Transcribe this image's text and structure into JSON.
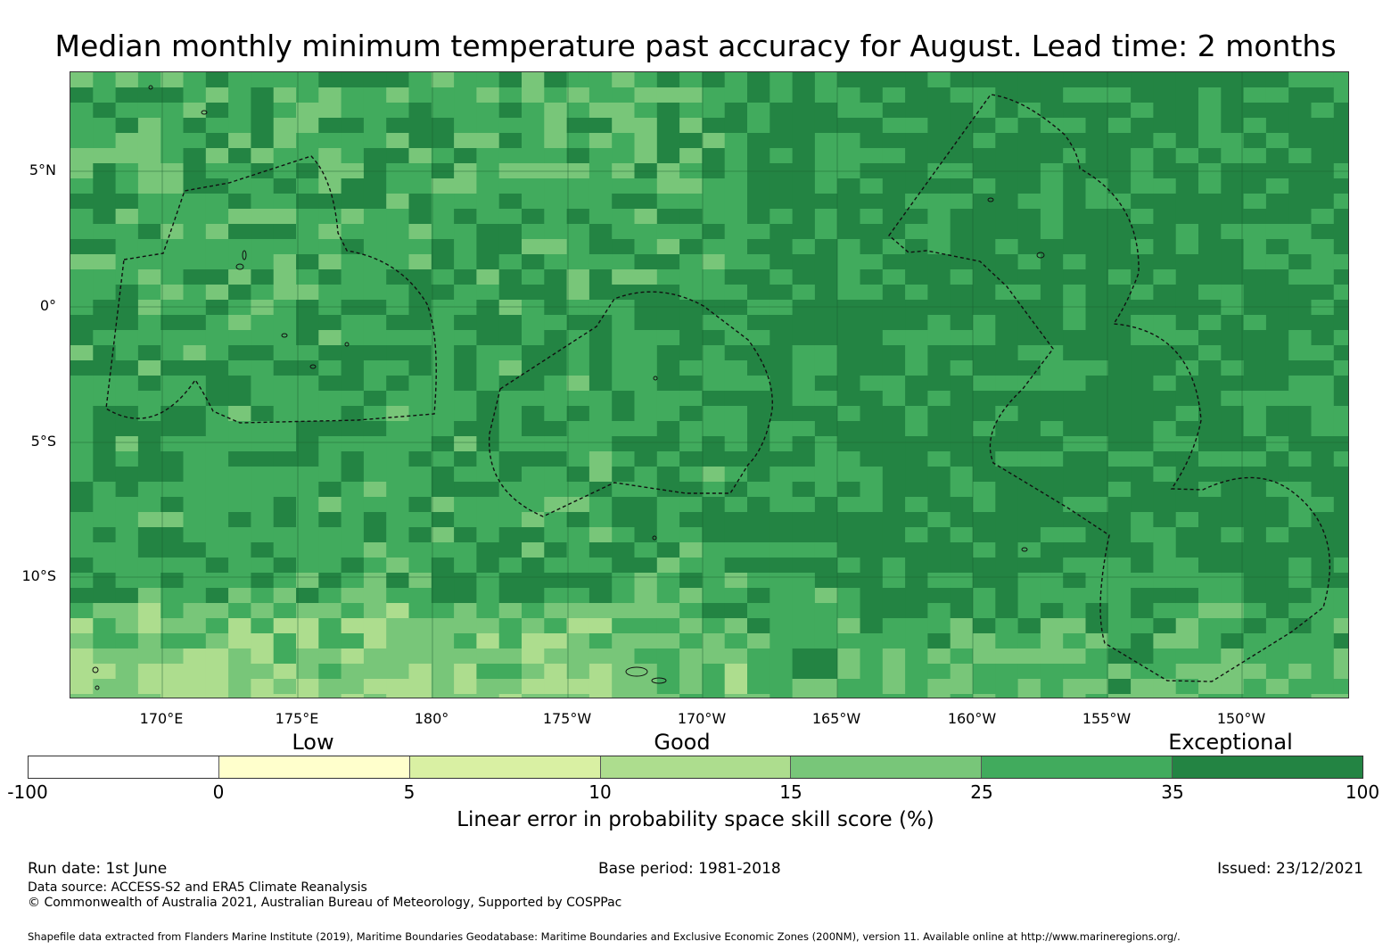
{
  "title": "Median monthly minimum temperature past accuracy for August. Lead time: 2 months",
  "map": {
    "lat_labels": [
      "5°N",
      "0°",
      "5°S",
      "10°S"
    ],
    "lon_labels": [
      "170°E",
      "175°E",
      "180°",
      "175°W",
      "170°W",
      "165°W",
      "160°W",
      "155°W",
      "150°W"
    ],
    "palette": [
      "#ffffcc",
      "#d9f0a3",
      "#addd8e",
      "#78c679",
      "#41ab5d",
      "#238443"
    ],
    "boundary_color": "#111111",
    "grid_color": "#1a5e30"
  },
  "legend": {
    "categories": [
      "Low",
      "Good",
      "Exceptional"
    ],
    "ticks": [
      "-100",
      "0",
      "5",
      "10",
      "15",
      "25",
      "35",
      "100"
    ],
    "colors": [
      "#ffffff",
      "#ffffcc",
      "#d9f0a3",
      "#addd8e",
      "#78c679",
      "#41ab5d",
      "#238443"
    ],
    "title": "Linear error in probability space skill score (%)"
  },
  "footer": {
    "run_date": "Run date: 1st June",
    "base_period": "Base period: 1981-2018",
    "issued": "Issued: 23/12/2021",
    "data_source": "Data source: ACCESS-S2 and ERA5 Climate Reanalysis",
    "copyright": "© Commonwealth of Australia 2021, Australian Bureau of Meteorology, Supported by COSPPac",
    "shapefile": "Shapefile data extracted from Flanders Marine Institute (2019), Maritime Boundaries Geodatabase: Maritime Boundaries and Exclusive Economic Zones (200NM), version 11. Available online at http://www.marineregions.org/."
  }
}
